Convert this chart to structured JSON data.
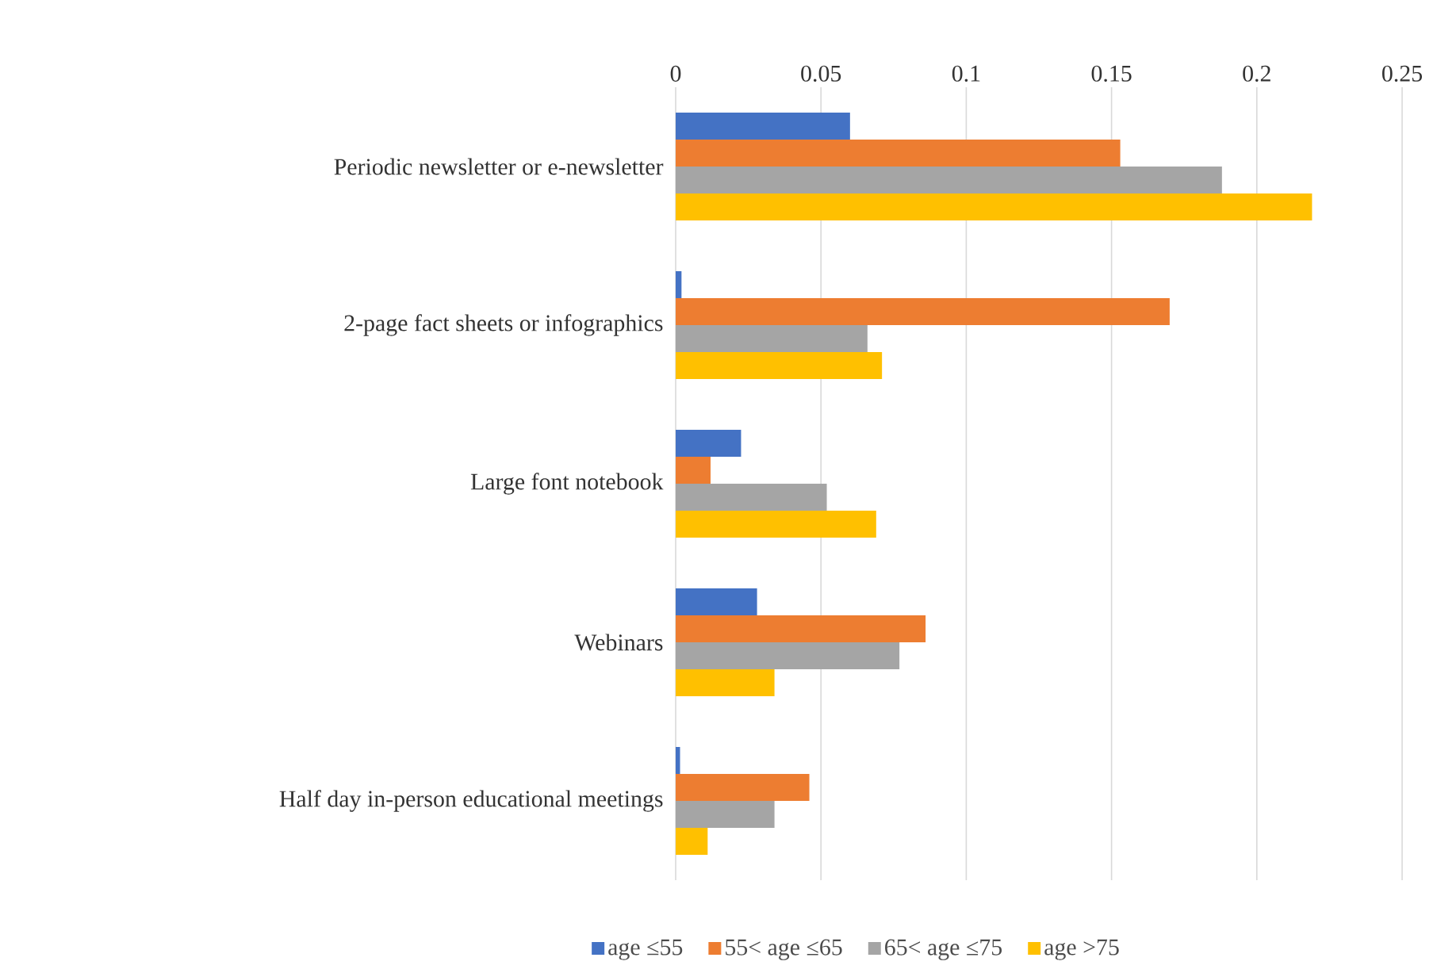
{
  "chart_data": {
    "type": "bar",
    "orientation": "horizontal",
    "categories": [
      "Periodic newsletter or e-newsletter",
      "2-page fact sheets or infographics",
      "Large font notebook",
      "Webinars",
      "Half day in-person educational meetings"
    ],
    "series": [
      {
        "name": "age ≤55",
        "color": "#4472c4",
        "values": [
          0.06,
          0.002,
          0.0225,
          0.028,
          0.0015
        ]
      },
      {
        "name": "55< age ≤65",
        "color": "#ed7d31",
        "values": [
          0.153,
          0.17,
          0.012,
          0.086,
          0.046
        ]
      },
      {
        "name": "65< age ≤75",
        "color": "#a5a5a5",
        "values": [
          0.188,
          0.066,
          0.052,
          0.077,
          0.034
        ]
      },
      {
        "name": "age >75",
        "color": "#ffc000",
        "values": [
          0.219,
          0.071,
          0.069,
          0.034,
          0.011
        ]
      }
    ],
    "xlim": [
      0,
      0.25
    ],
    "xticks": [
      0,
      0.05,
      0.1,
      0.15,
      0.2,
      0.25
    ],
    "grid": "x",
    "legend": "bottom"
  }
}
